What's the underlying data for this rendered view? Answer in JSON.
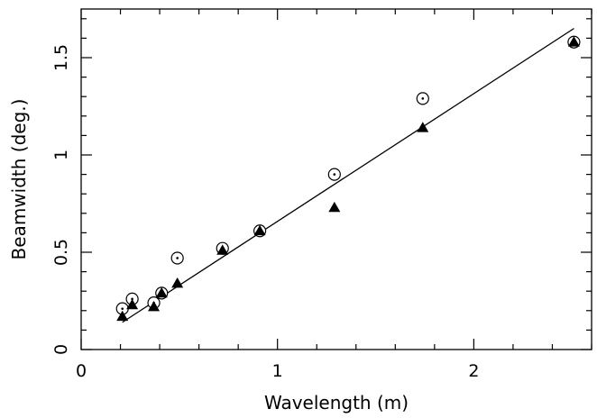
{
  "chart_data": {
    "type": "scatter",
    "title": "",
    "xlabel": "Wavelength (m)",
    "ylabel": "Beamwidth (deg.)",
    "xlim": [
      0,
      2.6
    ],
    "ylim": [
      0,
      1.75
    ],
    "x_major_ticks": [
      0,
      1,
      2
    ],
    "x_tick_labels": [
      "0",
      "1",
      "2"
    ],
    "y_major_ticks": [
      0,
      0.5,
      1,
      1.5
    ],
    "y_tick_labels": [
      "0",
      "0.5",
      "1",
      "1.5"
    ],
    "grid": false,
    "series": [
      {
        "marker": "open-circle-dot",
        "points": [
          {
            "x": 0.21,
            "y": 0.21
          },
          {
            "x": 0.26,
            "y": 0.26
          },
          {
            "x": 0.37,
            "y": 0.24
          },
          {
            "x": 0.41,
            "y": 0.29
          },
          {
            "x": 0.49,
            "y": 0.47
          },
          {
            "x": 0.72,
            "y": 0.52
          },
          {
            "x": 0.91,
            "y": 0.61
          },
          {
            "x": 1.29,
            "y": 0.9
          },
          {
            "x": 1.74,
            "y": 1.29
          },
          {
            "x": 2.51,
            "y": 1.58
          }
        ]
      },
      {
        "marker": "filled-triangle",
        "points": [
          {
            "x": 0.21,
            "y": 0.17
          },
          {
            "x": 0.26,
            "y": 0.23
          },
          {
            "x": 0.37,
            "y": 0.22
          },
          {
            "x": 0.41,
            "y": 0.29
          },
          {
            "x": 0.49,
            "y": 0.34
          },
          {
            "x": 0.72,
            "y": 0.51
          },
          {
            "x": 0.91,
            "y": 0.61
          },
          {
            "x": 1.29,
            "y": 0.73
          },
          {
            "x": 1.74,
            "y": 1.14
          },
          {
            "x": 2.51,
            "y": 1.58
          }
        ]
      }
    ],
    "fit_line": {
      "x": [
        0.21,
        2.51
      ],
      "y": [
        0.14,
        1.65
      ]
    }
  }
}
